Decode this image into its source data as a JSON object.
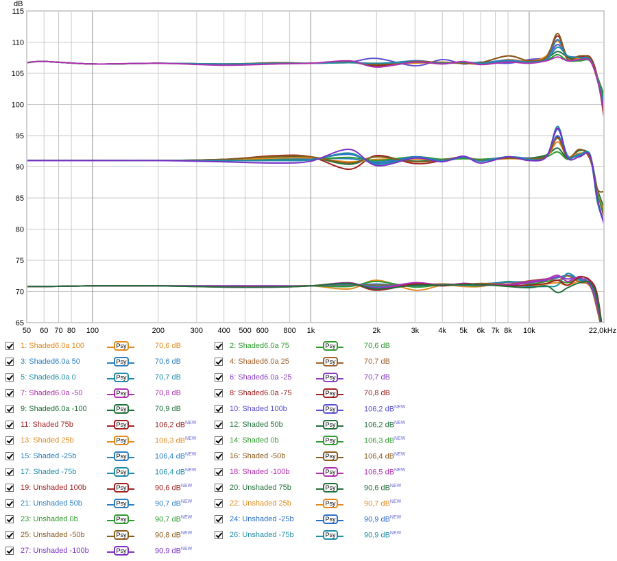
{
  "chart_data": {
    "type": "line",
    "ylabel": "dB",
    "xscale": "log",
    "xlim": [
      50,
      22000
    ],
    "ylim": [
      65,
      115
    ],
    "yticks": [
      65,
      70,
      75,
      80,
      85,
      90,
      95,
      100,
      105,
      110,
      115
    ],
    "xticks": [
      {
        "v": 50,
        "label": "50"
      },
      {
        "v": 60,
        "label": "60"
      },
      {
        "v": 70,
        "label": "70"
      },
      {
        "v": 80,
        "label": "80"
      },
      {
        "v": 100,
        "label": "100"
      },
      {
        "v": 200,
        "label": "200"
      },
      {
        "v": 300,
        "label": "300"
      },
      {
        "v": 400,
        "label": "400"
      },
      {
        "v": 500,
        "label": "500"
      },
      {
        "v": 600,
        "label": "600"
      },
      {
        "v": 800,
        "label": "800"
      },
      {
        "v": 1000,
        "label": "1k"
      },
      {
        "v": 2000,
        "label": "2k"
      },
      {
        "v": 3000,
        "label": "3k"
      },
      {
        "v": 4000,
        "label": "4k"
      },
      {
        "v": 5000,
        "label": "5k"
      },
      {
        "v": 6000,
        "label": "6k"
      },
      {
        "v": 7000,
        "label": "7k"
      },
      {
        "v": 8000,
        "label": "8k"
      },
      {
        "v": 10000,
        "label": "10k"
      },
      {
        "v": 22000,
        "label": "22,0kHz"
      }
    ],
    "grid": true,
    "x": [
      50,
      60,
      100,
      200,
      400,
      700,
      1000,
      1500,
      2000,
      3000,
      4000,
      5000,
      6000,
      8000,
      10000,
      12000,
      13500,
      15000,
      17000,
      19000,
      20500,
      22000
    ],
    "series": [
      {
        "name": "1: Shaded6.0a 100",
        "level": "70,6 dB",
        "isnew": false,
        "color": "#e08a1e",
        "y": [
          70.8,
          70.8,
          70.9,
          70.9,
          70.8,
          70.8,
          70.9,
          70.4,
          71.8,
          70.2,
          71.0,
          70.8,
          70.8,
          71.5,
          71.0,
          71.2,
          71.4,
          71.0,
          71.6,
          70.8,
          67.5,
          62.0
        ]
      },
      {
        "name": "2: Shaded6.0a 75",
        "level": "70,6 dB",
        "isnew": false,
        "color": "#2f9a2f",
        "y": [
          70.8,
          70.8,
          70.9,
          70.9,
          70.9,
          70.9,
          70.9,
          70.8,
          71.6,
          70.7,
          71.1,
          71.0,
          70.9,
          71.6,
          71.2,
          71.6,
          71.8,
          71.4,
          72.0,
          71.2,
          68.5,
          62.0
        ]
      },
      {
        "name": "3: Shaded6.0a 50",
        "level": "70,6 dB",
        "isnew": false,
        "color": "#2a7fc0",
        "y": [
          70.8,
          70.8,
          70.9,
          70.9,
          70.8,
          70.8,
          70.9,
          71.0,
          71.2,
          70.9,
          71.2,
          71.0,
          71.2,
          71.5,
          71.6,
          71.9,
          72.2,
          72.6,
          72.0,
          71.6,
          68.0,
          62.0
        ]
      },
      {
        "name": "4: Shaded6.0a 25",
        "level": "70,7 dB",
        "isnew": false,
        "color": "#a0602a",
        "y": [
          70.8,
          70.8,
          70.9,
          70.9,
          70.8,
          70.8,
          70.9,
          71.1,
          71.0,
          71.1,
          71.2,
          71.1,
          71.3,
          71.2,
          71.7,
          72.0,
          71.8,
          72.5,
          71.5,
          70.9,
          67.0,
          62.0
        ]
      },
      {
        "name": "5: Shaded6.0a 0",
        "level": "70,7 dB",
        "isnew": false,
        "color": "#1f8da8",
        "y": [
          70.8,
          70.8,
          70.9,
          70.9,
          70.8,
          70.8,
          70.9,
          71.2,
          70.8,
          71.2,
          71.0,
          71.2,
          71.0,
          71.0,
          70.8,
          70.8,
          71.0,
          72.9,
          71.8,
          71.4,
          68.5,
          62.0
        ]
      },
      {
        "name": "6: Shaded6.0a -25",
        "level": "70,7 dB",
        "isnew": false,
        "color": "#8a3fc0",
        "y": [
          70.8,
          70.8,
          70.9,
          70.9,
          70.9,
          70.9,
          70.9,
          71.3,
          70.6,
          71.4,
          71.0,
          71.3,
          71.1,
          71.0,
          71.4,
          71.8,
          72.4,
          72.0,
          72.2,
          71.0,
          67.8,
          62.0
        ]
      },
      {
        "name": "7: Shaded6.0a -50",
        "level": "70,8 dB",
        "isnew": false,
        "color": "#b02fb0",
        "y": [
          70.8,
          70.8,
          70.9,
          70.9,
          70.8,
          70.8,
          70.9,
          71.4,
          70.4,
          71.4,
          70.9,
          71.3,
          71.0,
          71.1,
          71.6,
          72.0,
          72.6,
          71.6,
          72.4,
          71.6,
          69.0,
          62.0
        ]
      },
      {
        "name": "8: Shaded6.0a -75",
        "level": "70,8 dB",
        "isnew": false,
        "color": "#a02020",
        "y": [
          70.8,
          70.8,
          70.9,
          70.9,
          70.7,
          70.7,
          70.9,
          71.3,
          70.2,
          71.2,
          70.9,
          71.2,
          71.1,
          70.9,
          71.0,
          71.3,
          71.8,
          71.0,
          72.3,
          71.8,
          69.5,
          62.0
        ]
      },
      {
        "name": "9: Shaded6.0a -100",
        "level": "70,9 dB",
        "isnew": false,
        "color": "#1f6f3a",
        "y": [
          70.8,
          70.8,
          70.9,
          70.9,
          70.7,
          70.7,
          70.9,
          71.3,
          70.4,
          71.0,
          71.0,
          71.1,
          71.1,
          70.8,
          70.6,
          70.9,
          69.8,
          70.6,
          71.4,
          71.4,
          68.8,
          62.0
        ]
      },
      {
        "name": "10: Shaded 100b",
        "level": "106,2 dB",
        "isnew": true,
        "color": "#5a4fd0",
        "y": [
          106.7,
          106.9,
          106.5,
          106.6,
          106.5,
          106.6,
          106.6,
          106.8,
          107.4,
          106.2,
          107.2,
          106.5,
          106.8,
          106.6,
          107.2,
          107.6,
          109.6,
          107.8,
          107.6,
          107.3,
          104.0,
          100.0
        ]
      },
      {
        "name": "11: Shaded 75b",
        "level": "106,2 dB",
        "isnew": true,
        "color": "#a02020",
        "y": [
          106.7,
          106.9,
          106.5,
          106.6,
          106.4,
          106.6,
          106.6,
          106.8,
          106.2,
          107.0,
          106.6,
          106.8,
          106.7,
          107.8,
          107.0,
          107.8,
          111.0,
          107.6,
          107.6,
          107.6,
          104.5,
          98.0
        ]
      },
      {
        "name": "12: Shaded 50b",
        "level": "106,2 dB",
        "isnew": true,
        "color": "#1f6f3a",
        "y": [
          106.7,
          106.9,
          106.5,
          106.6,
          106.4,
          106.7,
          106.6,
          106.8,
          106.4,
          106.9,
          106.6,
          106.7,
          106.6,
          107.0,
          106.8,
          107.4,
          108.5,
          107.6,
          107.0,
          107.2,
          104.5,
          101.5
        ]
      },
      {
        "name": "13: Shaded 25b",
        "level": "106,3 dB",
        "isnew": true,
        "color": "#e08a1e",
        "y": [
          106.7,
          106.9,
          106.5,
          106.6,
          106.5,
          106.6,
          106.6,
          106.7,
          106.6,
          106.6,
          106.8,
          106.6,
          106.5,
          107.2,
          106.9,
          107.8,
          110.2,
          107.2,
          107.4,
          107.0,
          104.0,
          100.5
        ]
      },
      {
        "name": "14: Shaded 0b",
        "level": "106,3 dB",
        "isnew": true,
        "color": "#2f9a2f",
        "y": [
          106.7,
          106.9,
          106.5,
          106.6,
          106.5,
          106.6,
          106.6,
          106.7,
          106.5,
          106.8,
          106.7,
          106.6,
          106.6,
          106.9,
          106.8,
          107.1,
          108.0,
          107.0,
          107.0,
          107.0,
          104.5,
          101.0
        ]
      },
      {
        "name": "15: Shaded -25b",
        "level": "106,4 dB",
        "isnew": true,
        "color": "#2a7fc0",
        "y": [
          106.7,
          106.9,
          106.5,
          106.6,
          106.5,
          106.6,
          106.6,
          106.8,
          106.5,
          107.0,
          106.6,
          106.8,
          106.7,
          107.1,
          106.8,
          107.3,
          110.4,
          107.2,
          107.2,
          107.3,
          104.0,
          99.5
        ]
      },
      {
        "name": "16: Shaded -50b",
        "level": "106,4 dB",
        "isnew": true,
        "color": "#8a5a1a",
        "y": [
          106.7,
          106.9,
          106.5,
          106.6,
          106.5,
          106.7,
          106.6,
          106.8,
          106.4,
          106.9,
          106.7,
          106.6,
          106.7,
          107.8,
          107.0,
          107.6,
          111.4,
          107.3,
          107.8,
          107.4,
          104.2,
          98.5
        ]
      },
      {
        "name": "17: Shaded -75b",
        "level": "106,4 dB",
        "isnew": true,
        "color": "#1f8da8",
        "y": [
          106.7,
          106.9,
          106.5,
          106.6,
          106.5,
          106.6,
          106.6,
          106.7,
          106.6,
          106.8,
          106.6,
          106.8,
          106.6,
          106.9,
          106.8,
          107.2,
          109.2,
          107.8,
          107.5,
          107.2,
          104.2,
          100.2
        ]
      },
      {
        "name": "18: Shaded -100b",
        "level": "106,5 dB",
        "isnew": true,
        "color": "#b02fb0",
        "y": [
          106.7,
          106.9,
          106.5,
          106.6,
          106.3,
          106.5,
          106.6,
          107.0,
          106.0,
          106.8,
          106.5,
          106.9,
          106.4,
          106.8,
          106.6,
          107.0,
          107.6,
          107.0,
          107.2,
          107.0,
          104.0,
          99.0
        ]
      },
      {
        "name": "19: Unshaded 100b",
        "level": "90,6 dB",
        "isnew": true,
        "color": "#a02020",
        "y": [
          91.0,
          91.0,
          91.0,
          91.0,
          91.2,
          91.8,
          91.6,
          89.6,
          91.8,
          90.5,
          91.0,
          91.6,
          91.0,
          91.4,
          91.4,
          91.8,
          94.8,
          91.4,
          92.8,
          91.2,
          86.0,
          82.0
        ]
      },
      {
        "name": "20: Unshaded 75b",
        "level": "90,6 dB",
        "isnew": true,
        "color": "#1f6f3a",
        "y": [
          91.0,
          91.0,
          91.0,
          91.0,
          91.2,
          91.6,
          91.5,
          90.4,
          91.6,
          90.9,
          91.2,
          91.4,
          91.2,
          91.5,
          91.4,
          91.9,
          93.0,
          91.4,
          92.6,
          91.8,
          86.5,
          83.5
        ]
      },
      {
        "name": "21: Unshaded 50b",
        "level": "90,7 dB",
        "isnew": true,
        "color": "#2a7fc0",
        "y": [
          91.0,
          91.0,
          91.0,
          91.0,
          91.0,
          91.2,
          91.3,
          91.3,
          90.8,
          91.6,
          91.0,
          91.4,
          91.0,
          91.6,
          91.4,
          91.8,
          96.0,
          91.8,
          91.8,
          92.0,
          85.0,
          81.0
        ]
      },
      {
        "name": "22: Unshaded 25b",
        "level": "90,7 dB",
        "isnew": true,
        "color": "#e08a1e",
        "y": [
          91.0,
          91.0,
          91.0,
          91.0,
          91.1,
          91.4,
          91.4,
          90.8,
          91.2,
          91.2,
          91.1,
          91.5,
          91.1,
          91.3,
          91.2,
          91.6,
          94.0,
          91.6,
          92.2,
          91.5,
          86.0,
          83.0
        ]
      },
      {
        "name": "23: Unshaded 0b",
        "level": "90,7 dB",
        "isnew": true,
        "color": "#2f9a2f",
        "y": [
          91.0,
          91.0,
          91.0,
          91.0,
          91.0,
          91.1,
          91.2,
          91.5,
          91.0,
          91.6,
          91.2,
          91.3,
          91.2,
          91.4,
          91.3,
          91.6,
          92.4,
          91.2,
          92.0,
          91.8,
          85.8,
          82.5
        ]
      },
      {
        "name": "24: Unshaded -25b",
        "level": "90,9 dB",
        "isnew": true,
        "color": "#2a6fc8",
        "y": [
          91.0,
          91.0,
          91.0,
          91.0,
          91.0,
          91.0,
          91.2,
          92.0,
          90.6,
          91.6,
          91.0,
          91.5,
          91.0,
          91.6,
          91.3,
          91.7,
          95.0,
          91.6,
          92.0,
          91.6,
          84.5,
          81.0
        ]
      },
      {
        "name": "25: Unshaded -50b",
        "level": "90,8 dB",
        "isnew": true,
        "color": "#8a5a1a",
        "y": [
          91.0,
          91.0,
          91.0,
          91.0,
          91.2,
          91.7,
          91.6,
          90.6,
          91.6,
          90.8,
          91.1,
          91.6,
          91.0,
          91.4,
          91.3,
          91.7,
          94.6,
          91.4,
          92.8,
          91.4,
          86.5,
          86.0
        ]
      },
      {
        "name": "26: Unshaded -75b",
        "level": "90,9 dB",
        "isnew": true,
        "color": "#1f8da8",
        "y": [
          91.0,
          91.0,
          91.0,
          91.0,
          91.0,
          91.0,
          91.1,
          92.2,
          90.4,
          91.5,
          91.0,
          91.6,
          90.9,
          91.6,
          91.2,
          91.6,
          96.5,
          91.6,
          92.0,
          91.8,
          84.5,
          81.0
        ]
      },
      {
        "name": "27: Unshaded -100b",
        "level": "90,9 dB",
        "isnew": true,
        "color": "#7a30c8",
        "y": [
          91.0,
          91.0,
          91.0,
          91.0,
          90.8,
          90.6,
          90.9,
          92.8,
          90.2,
          91.4,
          90.8,
          91.7,
          90.6,
          91.6,
          91.0,
          91.6,
          96.2,
          91.4,
          91.6,
          91.8,
          85.0,
          80.8
        ]
      }
    ]
  },
  "legend": {
    "psy_label": "Psy",
    "new_label": "NEW"
  }
}
